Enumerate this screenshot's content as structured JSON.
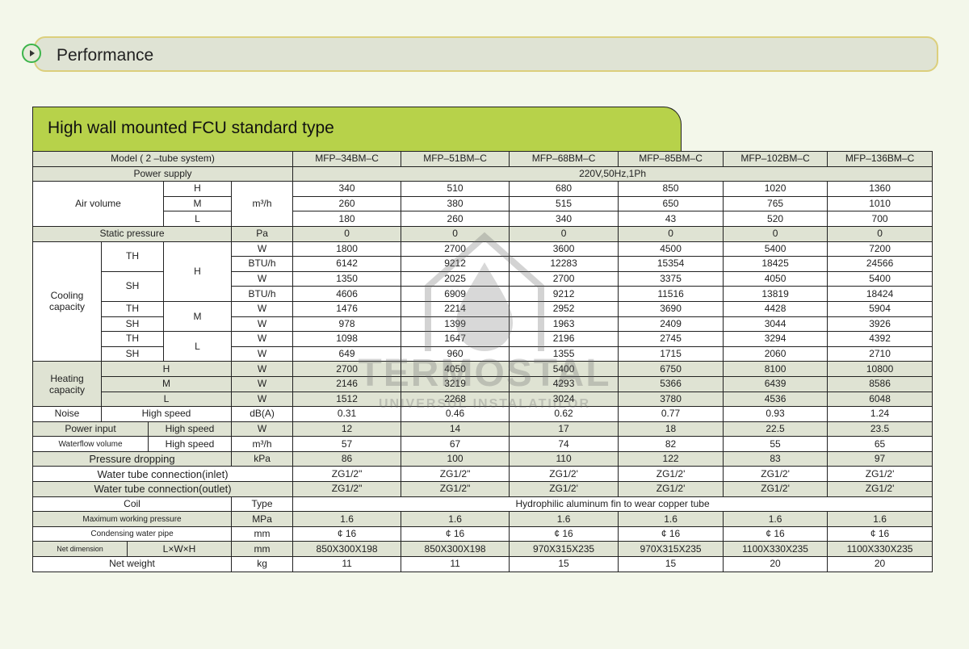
{
  "header": {
    "title": "Performance",
    "icon": "chevron-right-circle-icon"
  },
  "section": {
    "title": "High wall mounted FCU standard type"
  },
  "colors": {
    "background": "#f3f7ea",
    "accent_green": "#b7d24a",
    "row_grey": "#dfe3d3",
    "bullet_green": "#3cb44a"
  },
  "watermark": {
    "line1": "TERMOSTAL",
    "line2": "UNIVERSUL INSTALATIILOR",
    "icon": "house-drop-logo"
  },
  "table": {
    "model_label": "Model ( 2 –tube system)",
    "models": [
      "MFP–34BM–C",
      "MFP–51BM–C",
      "MFP–68BM–C",
      "MFP–85BM–C",
      "MFP–102BM–C",
      "MFP–136BM–C"
    ],
    "power_supply": {
      "label": "Power supply",
      "value": "220V,50Hz,1Ph"
    },
    "air_volume": {
      "label": "Air volume",
      "unit": "m³/h",
      "H": "H",
      "M": "M",
      "L": "L",
      "h": [
        "340",
        "510",
        "680",
        "850",
        "1020",
        "1360"
      ],
      "m": [
        "260",
        "380",
        "515",
        "650",
        "765",
        "1010"
      ],
      "l": [
        "180",
        "260",
        "340",
        "43",
        "520",
        "700"
      ]
    },
    "static_pressure": {
      "label": "Static pressure",
      "unit": "Pa",
      "values": [
        "0",
        "0",
        "0",
        "0",
        "0",
        "0"
      ]
    },
    "cooling": {
      "label": "Cooling capacity",
      "TH": "TH",
      "SH": "SH",
      "H": "H",
      "M": "M",
      "L": "L",
      "W": "W",
      "BTU": "BTU/h",
      "h_th_w": [
        "1800",
        "2700",
        "3600",
        "4500",
        "5400",
        "7200"
      ],
      "h_th_btu": [
        "6142",
        "9212",
        "12283",
        "15354",
        "18425",
        "24566"
      ],
      "h_sh_w": [
        "1350",
        "2025",
        "2700",
        "3375",
        "4050",
        "5400"
      ],
      "h_sh_btu": [
        "4606",
        "6909",
        "9212",
        "11516",
        "13819",
        "18424"
      ],
      "m_th_w": [
        "1476",
        "2214",
        "2952",
        "3690",
        "4428",
        "5904"
      ],
      "m_sh_w": [
        "978",
        "1399",
        "1963",
        "2409",
        "3044",
        "3926"
      ],
      "l_th_w": [
        "1098",
        "1647",
        "2196",
        "2745",
        "3294",
        "4392"
      ],
      "l_sh_w": [
        "649",
        "960",
        "1355",
        "1715",
        "2060",
        "2710"
      ]
    },
    "heating": {
      "label": "Heating capacity",
      "H": "H",
      "M": "M",
      "L": "L",
      "unit": "W",
      "h": [
        "2700",
        "4050",
        "5400",
        "6750",
        "8100",
        "10800"
      ],
      "m": [
        "2146",
        "3219",
        "4293",
        "5366",
        "6439",
        "8586"
      ],
      "l": [
        "1512",
        "2268",
        "3024",
        "3780",
        "4536",
        "6048"
      ]
    },
    "noise": {
      "label": "Noise",
      "sub": "High speed",
      "unit": "dB(A)",
      "values": [
        "0.31",
        "0.46",
        "0.62",
        "0.77",
        "0.93",
        "1.24"
      ]
    },
    "power_input": {
      "label": "Power input",
      "sub": "High speed",
      "unit": "W",
      "values": [
        "12",
        "14",
        "17",
        "18",
        "22.5",
        "23.5"
      ]
    },
    "waterflow": {
      "label": "Waterflow volume",
      "sub": "High speed",
      "unit": "m³/h",
      "values": [
        "57",
        "67",
        "74",
        "82",
        "55",
        "65"
      ]
    },
    "pressure_dropping": {
      "label": "Pressure dropping",
      "unit": "kPa",
      "values": [
        "86",
        "100",
        "110",
        "122",
        "83",
        "97"
      ]
    },
    "inlet": {
      "label": "Water tube connection(inlet)",
      "values": [
        "ZG1/2\"",
        "ZG1/2\"",
        "ZG1/2'",
        "ZG1/2'",
        "ZG1/2'",
        "ZG1/2'"
      ]
    },
    "outlet": {
      "label": "Water tube connection(outlet)",
      "values": [
        "ZG1/2\"",
        "ZG1/2\"",
        "ZG1/2'",
        "ZG1/2'",
        "ZG1/2'",
        "ZG1/2'"
      ]
    },
    "coil": {
      "label": "Coil",
      "unit": "Type",
      "value": "Hydrophilic aluminum fin to wear  copper tube"
    },
    "max_pressure": {
      "label": "Maximum working pressure",
      "unit": "MPa",
      "values": [
        "1.6",
        "1.6",
        "1.6",
        "1.6",
        "1.6",
        "1.6"
      ]
    },
    "condensing": {
      "label": "Condensing water pipe",
      "unit": "mm",
      "values": [
        "¢ 16",
        "¢ 16",
        "¢ 16",
        "¢ 16",
        "¢ 16",
        "¢ 16"
      ]
    },
    "net_dimension": {
      "label": "Net dimension",
      "sub": "L×W×H",
      "unit": "mm",
      "values": [
        "850X300X198",
        "850X300X198",
        "970X315X235",
        "970X315X235",
        "1100X330X235",
        "1100X330X235"
      ]
    },
    "net_weight": {
      "label": "Net weight",
      "unit": "kg",
      "values": [
        "11",
        "11",
        "15",
        "15",
        "20",
        "20"
      ]
    }
  }
}
